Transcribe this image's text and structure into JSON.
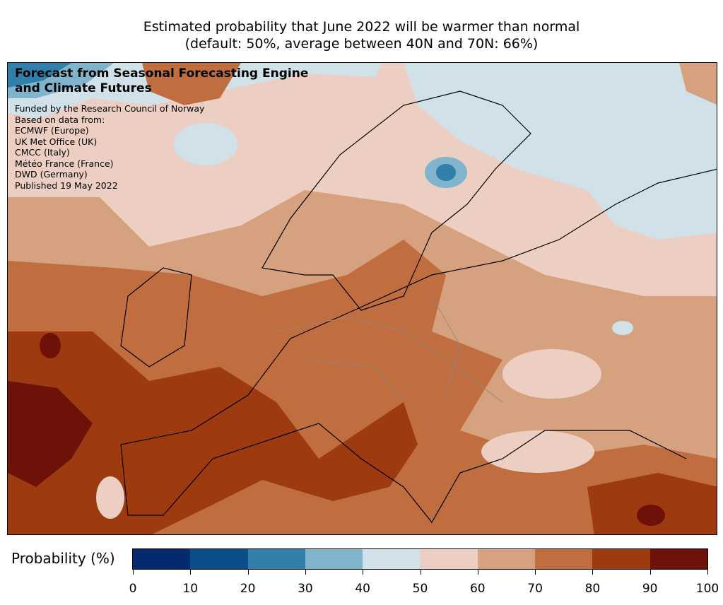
{
  "title": {
    "line1": "Estimated probability that June 2022 will be warmer than normal",
    "line2": "(default: 50%, average between 40N and 70N: 66%)"
  },
  "overlay": {
    "heading1": "Forecast from Seasonal Forecasting Engine",
    "heading2": "and Climate Futures",
    "lines": [
      "Funded by the Research Council of Norway",
      "Based on data from:",
      "ECMWF (Europe)",
      "UK Met Office (UK)",
      "CMCC (Italy)",
      "Météo France (France)",
      "DWD (Germany)",
      "Published 19 May 2022"
    ]
  },
  "colorbar": {
    "label": "Probability (%)",
    "colors": [
      "#062a6e",
      "#0b4f88",
      "#3180aa",
      "#80b4cc",
      "#d0e1e9",
      "#eccfc2",
      "#d6a17e",
      "#c06e40",
      "#9e3a0f",
      "#6e1109"
    ],
    "ticks": [
      "0",
      "10",
      "20",
      "30",
      "40",
      "50",
      "60",
      "70",
      "80",
      "90",
      "100"
    ]
  }
}
